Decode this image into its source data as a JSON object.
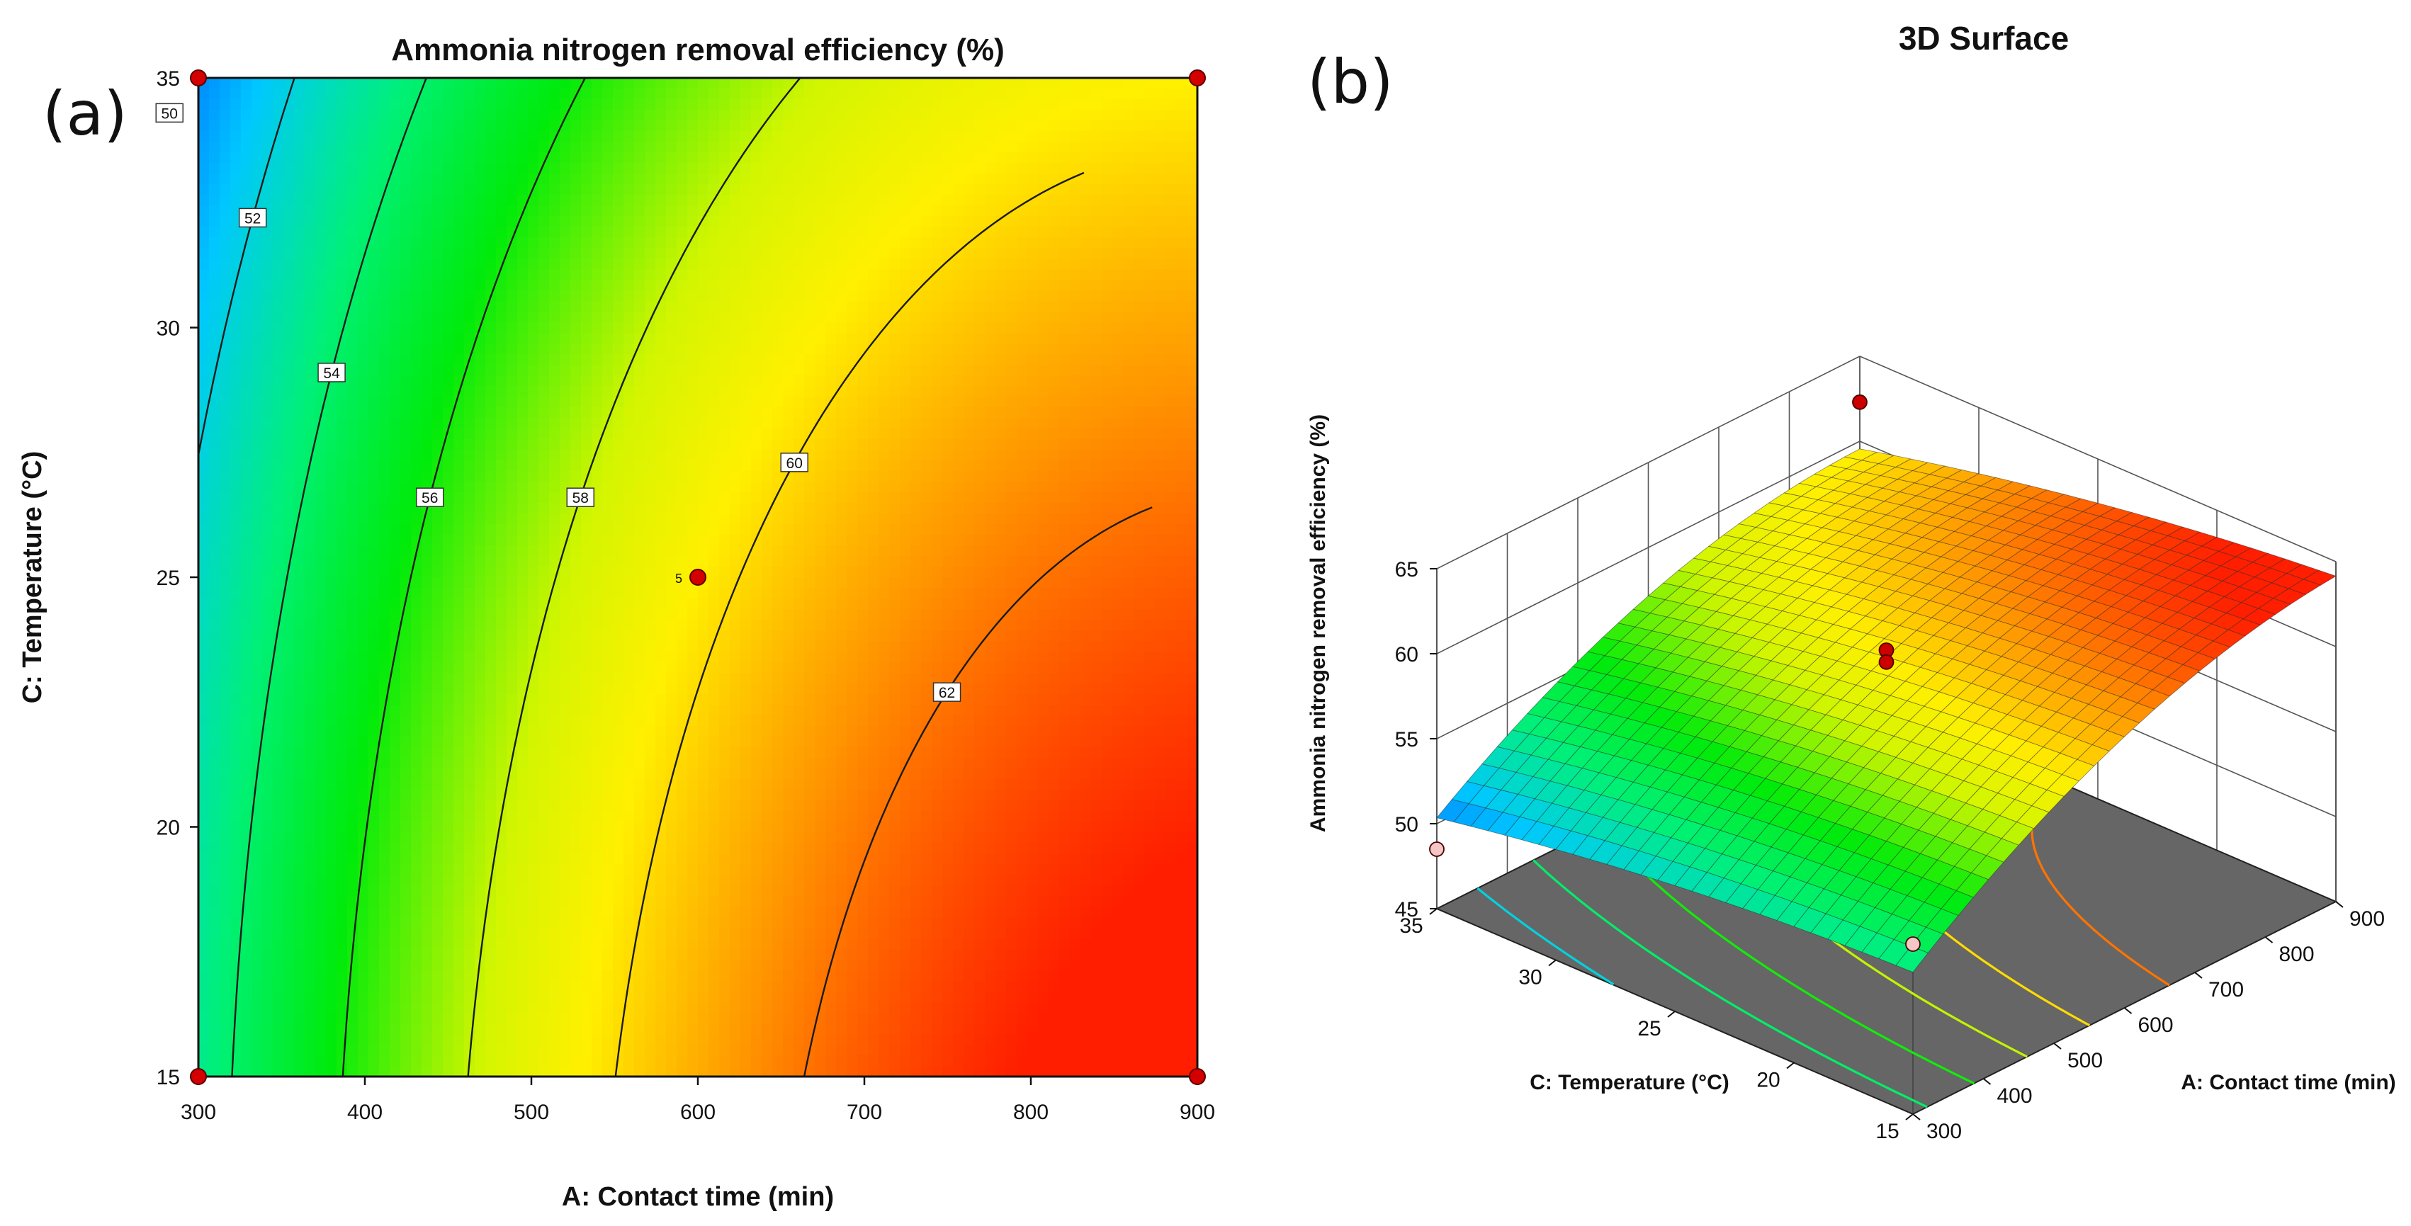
{
  "panel_a_label": "(a)",
  "panel_b_label": "(b)",
  "chart_data": [
    {
      "type": "heatmap",
      "subtype": "contour",
      "title": "Ammonia nitrogen removal efficiency (%)",
      "xlabel": "A: Contact time (min)",
      "ylabel": "C: Temperature (°C)",
      "xlim": [
        300,
        900
      ],
      "ylim": [
        15,
        35
      ],
      "xticks": [
        "300",
        "400",
        "500",
        "600",
        "700",
        "800",
        "900"
      ],
      "yticks": [
        "15",
        "20",
        "25",
        "30",
        "35"
      ],
      "contour_levels": [
        50,
        52,
        54,
        56,
        58,
        60,
        62
      ],
      "contour_labels": [
        "50",
        "52",
        "54",
        "56",
        "58",
        "60",
        "62"
      ],
      "color_range": [
        49.5,
        63.5
      ],
      "design_points": [
        {
          "x": 300,
          "y": 35
        },
        {
          "x": 900,
          "y": 35
        },
        {
          "x": 600,
          "y": 25
        },
        {
          "x": 300,
          "y": 15
        },
        {
          "x": 900,
          "y": 15
        }
      ],
      "center_point_count": "5"
    },
    {
      "type": "area",
      "subtype": "3d-surface",
      "title": "3D Surface",
      "zlabel": "Ammonia nitrogen removal efficiency (%)",
      "xlabel": "A: Contact time (min)",
      "ylabel": "C: Temperature (°C)",
      "xlim": [
        300,
        900
      ],
      "ylim": [
        15,
        35
      ],
      "zlim": [
        45,
        65
      ],
      "xticks": [
        "300",
        "400",
        "500",
        "600",
        "700",
        "800",
        "900"
      ],
      "yticks": [
        "15",
        "20",
        "25",
        "30",
        "35"
      ],
      "zticks": [
        "45",
        "50",
        "55",
        "60",
        "65"
      ],
      "floor_contour_levels": [
        52,
        54,
        56,
        58,
        60,
        62
      ],
      "floor_color": "#666666",
      "design_points": [
        {
          "x": 900,
          "y": 35,
          "z": 62.3,
          "above": true
        },
        {
          "x": 600,
          "y": 25,
          "z": 60.0,
          "above": true
        },
        {
          "x": 600,
          "y": 25,
          "z": 59.3,
          "above": true
        },
        {
          "x": 300,
          "y": 35,
          "z": 48.5,
          "above": false
        },
        {
          "x": 300,
          "y": 15,
          "z": 55.0,
          "above": false
        }
      ]
    }
  ]
}
